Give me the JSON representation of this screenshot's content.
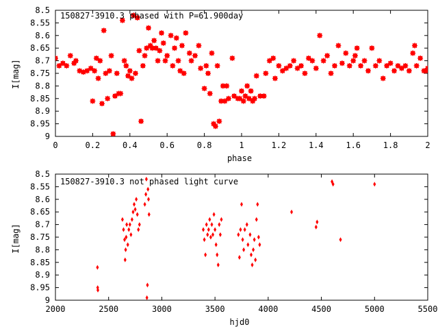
{
  "chart_data": [
    {
      "type": "scatter",
      "title": "150827-3910.3 phased with P=61.900day",
      "xlabel": "phase",
      "ylabel": "I[mag]",
      "xlim": [
        0,
        2
      ],
      "ylim": [
        8.5,
        9
      ],
      "y_inverted": true,
      "xticks": [
        0,
        0.2,
        0.4,
        0.6,
        0.8,
        1,
        1.2,
        1.4,
        1.6,
        1.8,
        2
      ],
      "xtick_labels": [
        "0",
        "0.2",
        "0.4",
        "0.6",
        "0.8",
        "1",
        "1.2",
        "1.4",
        "1.6",
        "1.8",
        "2"
      ],
      "yticks": [
        8.5,
        8.55,
        8.6,
        8.65,
        8.7,
        8.75,
        8.8,
        8.85,
        8.9,
        8.95,
        9
      ],
      "ytick_labels": [
        "8.5",
        "8.55",
        "8.6",
        "8.65",
        "8.7",
        "8.75",
        "8.8",
        "8.85",
        "8.9",
        "8.95",
        "9"
      ],
      "color": "#ff0000",
      "marker": "star",
      "points": [
        [
          0.0,
          8.69
        ],
        [
          0.02,
          8.72
        ],
        [
          0.04,
          8.71
        ],
        [
          0.06,
          8.72
        ],
        [
          0.08,
          8.68
        ],
        [
          0.1,
          8.71
        ],
        [
          0.11,
          8.7
        ],
        [
          0.13,
          8.74
        ],
        [
          0.15,
          8.745
        ],
        [
          0.17,
          8.74
        ],
        [
          0.19,
          8.73
        ],
        [
          0.2,
          8.86
        ],
        [
          0.21,
          8.74
        ],
        [
          0.22,
          8.69
        ],
        [
          0.23,
          8.77
        ],
        [
          0.24,
          8.7
        ],
        [
          0.25,
          8.87
        ],
        [
          0.26,
          8.58
        ],
        [
          0.27,
          8.75
        ],
        [
          0.28,
          8.85
        ],
        [
          0.29,
          8.74
        ],
        [
          0.3,
          8.68
        ],
        [
          0.31,
          8.99
        ],
        [
          0.32,
          8.84
        ],
        [
          0.33,
          8.75
        ],
        [
          0.34,
          8.83
        ],
        [
          0.35,
          8.83
        ],
        [
          0.36,
          8.54
        ],
        [
          0.37,
          8.7
        ],
        [
          0.38,
          8.72
        ],
        [
          0.39,
          8.76
        ],
        [
          0.4,
          8.74
        ],
        [
          0.41,
          8.77
        ],
        [
          0.42,
          8.52
        ],
        [
          0.43,
          8.75
        ],
        [
          0.44,
          8.53
        ],
        [
          0.45,
          8.66
        ],
        [
          0.46,
          8.94
        ],
        [
          0.47,
          8.72
        ],
        [
          0.48,
          8.68
        ],
        [
          0.49,
          8.65
        ],
        [
          0.5,
          8.57
        ],
        [
          0.51,
          8.64
        ],
        [
          0.52,
          8.65
        ],
        [
          0.53,
          8.62
        ],
        [
          0.54,
          8.65
        ],
        [
          0.55,
          8.7
        ],
        [
          0.56,
          8.66
        ],
        [
          0.57,
          8.59
        ],
        [
          0.58,
          8.63
        ],
        [
          0.59,
          8.7
        ],
        [
          0.6,
          8.68
        ],
        [
          0.62,
          8.6
        ],
        [
          0.63,
          8.72
        ],
        [
          0.64,
          8.65
        ],
        [
          0.65,
          8.61
        ],
        [
          0.66,
          8.7
        ],
        [
          0.67,
          8.74
        ],
        [
          0.68,
          8.64
        ],
        [
          0.69,
          8.75
        ],
        [
          0.7,
          8.59
        ],
        [
          0.72,
          8.67
        ],
        [
          0.73,
          8.7
        ],
        [
          0.75,
          8.68
        ],
        [
          0.77,
          8.64
        ],
        [
          0.78,
          8.73
        ],
        [
          0.8,
          8.81
        ],
        [
          0.81,
          8.72
        ],
        [
          0.82,
          8.75
        ],
        [
          0.83,
          8.83
        ],
        [
          0.84,
          8.67
        ],
        [
          0.85,
          8.95
        ],
        [
          0.86,
          8.96
        ],
        [
          0.87,
          8.72
        ],
        [
          0.88,
          8.94
        ],
        [
          0.89,
          8.86
        ],
        [
          0.9,
          8.8
        ],
        [
          0.91,
          8.86
        ],
        [
          0.92,
          8.8
        ],
        [
          0.93,
          8.85
        ],
        [
          0.95,
          8.69
        ],
        [
          0.96,
          8.84
        ],
        [
          0.98,
          8.85
        ],
        [
          0.99,
          8.85
        ],
        [
          1.0,
          8.82
        ],
        [
          1.01,
          8.86
        ],
        [
          1.02,
          8.84
        ],
        [
          1.03,
          8.8
        ],
        [
          1.04,
          8.85
        ],
        [
          1.05,
          8.82
        ],
        [
          1.06,
          8.86
        ],
        [
          1.07,
          8.85
        ],
        [
          1.08,
          8.76
        ],
        [
          1.1,
          8.84
        ],
        [
          1.12,
          8.84
        ],
        [
          1.13,
          8.75
        ],
        [
          1.15,
          8.7
        ],
        [
          1.17,
          8.69
        ],
        [
          1.18,
          8.77
        ],
        [
          1.2,
          8.72
        ],
        [
          1.22,
          8.74
        ],
        [
          1.24,
          8.73
        ],
        [
          1.26,
          8.72
        ],
        [
          1.28,
          8.7
        ],
        [
          1.3,
          8.73
        ],
        [
          1.32,
          8.72
        ],
        [
          1.34,
          8.75
        ],
        [
          1.36,
          8.69
        ],
        [
          1.38,
          8.7
        ],
        [
          1.4,
          8.73
        ],
        [
          1.42,
          8.6
        ],
        [
          1.44,
          8.7
        ],
        [
          1.46,
          8.68
        ],
        [
          1.48,
          8.75
        ],
        [
          1.5,
          8.72
        ],
        [
          1.52,
          8.64
        ],
        [
          1.54,
          8.71
        ],
        [
          1.56,
          8.67
        ],
        [
          1.58,
          8.72
        ],
        [
          1.6,
          8.7
        ],
        [
          1.61,
          8.68
        ],
        [
          1.62,
          8.65
        ],
        [
          1.64,
          8.72
        ],
        [
          1.66,
          8.7
        ],
        [
          1.68,
          8.74
        ],
        [
          1.7,
          8.65
        ],
        [
          1.72,
          8.72
        ],
        [
          1.74,
          8.7
        ],
        [
          1.76,
          8.77
        ],
        [
          1.78,
          8.72
        ],
        [
          1.8,
          8.71
        ],
        [
          1.82,
          8.74
        ],
        [
          1.84,
          8.72
        ],
        [
          1.86,
          8.73
        ],
        [
          1.88,
          8.72
        ],
        [
          1.9,
          8.74
        ],
        [
          1.92,
          8.67
        ],
        [
          1.93,
          8.64
        ],
        [
          1.94,
          8.72
        ],
        [
          1.96,
          8.69
        ],
        [
          1.98,
          8.74
        ],
        [
          1.99,
          8.74
        ],
        [
          2.0,
          8.73
        ]
      ]
    },
    {
      "type": "scatter",
      "title": "150827-3910.3 not phased light curve",
      "xlabel": "hjd0",
      "ylabel": "I[mag]",
      "xlim": [
        2000,
        5500
      ],
      "ylim": [
        8.5,
        9
      ],
      "y_inverted": true,
      "xticks": [
        2000,
        2500,
        3000,
        3500,
        4000,
        4500,
        5000,
        5500
      ],
      "xtick_labels": [
        "2000",
        "2500",
        "3000",
        "3500",
        "4000",
        "4500",
        "5000",
        "5500"
      ],
      "yticks": [
        8.5,
        8.55,
        8.6,
        8.65,
        8.7,
        8.75,
        8.8,
        8.85,
        8.9,
        8.95,
        9
      ],
      "ytick_labels": [
        "8.5",
        "8.55",
        "8.6",
        "8.65",
        "8.7",
        "8.75",
        "8.8",
        "8.85",
        "8.9",
        "8.95",
        "9"
      ],
      "color": "#ff0000",
      "marker": "diamond",
      "points": [
        [
          2395,
          8.87
        ],
        [
          2397,
          8.95
        ],
        [
          2399,
          8.96
        ],
        [
          2630,
          8.68
        ],
        [
          2640,
          8.72
        ],
        [
          2650,
          8.76
        ],
        [
          2655,
          8.84
        ],
        [
          2660,
          8.8
        ],
        [
          2665,
          8.75
        ],
        [
          2670,
          8.7
        ],
        [
          2680,
          8.78
        ],
        [
          2690,
          8.72
        ],
        [
          2700,
          8.7
        ],
        [
          2710,
          8.74
        ],
        [
          2720,
          8.68
        ],
        [
          2730,
          8.65
        ],
        [
          2740,
          8.62
        ],
        [
          2750,
          8.64
        ],
        [
          2760,
          8.6
        ],
        [
          2770,
          8.66
        ],
        [
          2780,
          8.72
        ],
        [
          2790,
          8.7
        ],
        [
          2840,
          8.62
        ],
        [
          2850,
          8.58
        ],
        [
          2855,
          8.52
        ],
        [
          2860,
          8.99
        ],
        [
          2865,
          8.94
        ],
        [
          2870,
          8.56
        ],
        [
          2875,
          8.6
        ],
        [
          2880,
          8.66
        ],
        [
          3390,
          8.72
        ],
        [
          3400,
          8.76
        ],
        [
          3410,
          8.82
        ],
        [
          3420,
          8.7
        ],
        [
          3430,
          8.74
        ],
        [
          3440,
          8.72
        ],
        [
          3450,
          8.68
        ],
        [
          3460,
          8.75
        ],
        [
          3470,
          8.7
        ],
        [
          3480,
          8.74
        ],
        [
          3490,
          8.66
        ],
        [
          3500,
          8.72
        ],
        [
          3510,
          8.78
        ],
        [
          3520,
          8.82
        ],
        [
          3530,
          8.86
        ],
        [
          3540,
          8.7
        ],
        [
          3550,
          8.74
        ],
        [
          3560,
          8.68
        ],
        [
          3720,
          8.74
        ],
        [
          3730,
          8.83
        ],
        [
          3740,
          8.72
        ],
        [
          3750,
          8.62
        ],
        [
          3760,
          8.76
        ],
        [
          3770,
          8.8
        ],
        [
          3780,
          8.72
        ],
        [
          3800,
          8.7
        ],
        [
          3810,
          8.78
        ],
        [
          3830,
          8.74
        ],
        [
          3840,
          8.82
        ],
        [
          3850,
          8.86
        ],
        [
          3860,
          8.8
        ],
        [
          3870,
          8.76
        ],
        [
          3880,
          8.84
        ],
        [
          3890,
          8.68
        ],
        [
          3900,
          8.62
        ],
        [
          3910,
          8.75
        ],
        [
          3920,
          8.78
        ],
        [
          4220,
          8.65
        ],
        [
          4450,
          8.71
        ],
        [
          4460,
          8.69
        ],
        [
          4600,
          8.53
        ],
        [
          4610,
          8.54
        ],
        [
          4680,
          8.76
        ],
        [
          5000,
          8.54
        ]
      ]
    }
  ]
}
